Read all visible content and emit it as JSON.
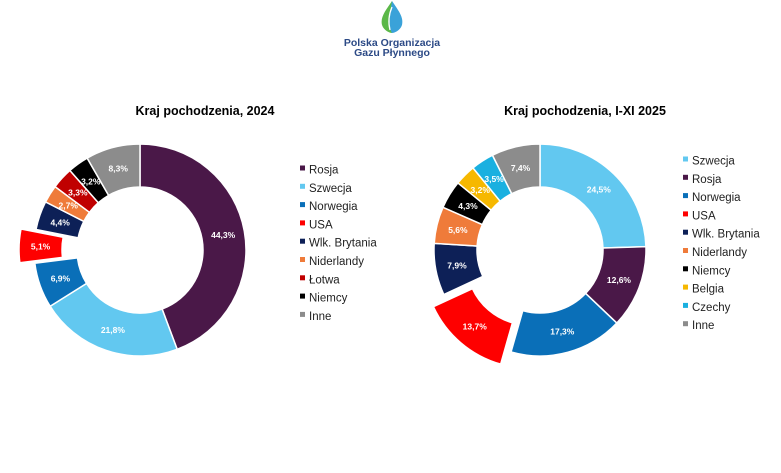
{
  "logo": {
    "line1": "Polska Organizacja",
    "line2": "Gazu Płynnego",
    "colors": {
      "text": "#2c4a86",
      "green": "#5bb848",
      "blue": "#3aa2d9"
    }
  },
  "chart_data": [
    {
      "type": "pie",
      "variant": "donut",
      "title": "Kraj pochodzenia, 2024",
      "categories": [
        "Rosja",
        "Szwecja",
        "Norwegia",
        "USA",
        "Wlk. Brytania",
        "Niderlandy",
        "Łotwa",
        "Niemcy",
        "Inne"
      ],
      "values": [
        44.3,
        21.8,
        6.9,
        5.1,
        4.4,
        2.7,
        3.3,
        3.2,
        8.3
      ],
      "value_labels": [
        "44,3%",
        "21,8%",
        "6,9%",
        "5,1%",
        "4,4%",
        "2,7%",
        "3,3%",
        "3,2%",
        "8,3%"
      ],
      "colors": [
        "#4a1848",
        "#62c8f0",
        "#0a6fb8",
        "#fe0000",
        "#0d2057",
        "#ef7b3a",
        "#c00000",
        "#000000",
        "#8c8c8c"
      ],
      "exploded": [
        "USA"
      ],
      "legend_position": "right"
    },
    {
      "type": "pie",
      "variant": "donut",
      "title": "Kraj pochodzenia, I-XI 2025",
      "categories": [
        "Szwecja",
        "Rosja",
        "Norwegia",
        "USA",
        "Wlk. Brytania",
        "Niderlandy",
        "Niemcy",
        "Belgia",
        "Czechy",
        "Inne"
      ],
      "values": [
        24.5,
        12.6,
        17.3,
        13.7,
        7.9,
        5.6,
        4.3,
        3.2,
        3.5,
        7.4
      ],
      "value_labels": [
        "24,5%",
        "12,6%",
        "17,3%",
        "13,7%",
        "7,9%",
        "5,6%",
        "4,3%",
        "3,2%",
        "3,5%",
        "7,4%"
      ],
      "colors": [
        "#62c8f0",
        "#4a1848",
        "#0a6fb8",
        "#fe0000",
        "#0d2057",
        "#ef7b3a",
        "#000000",
        "#f6b800",
        "#1ab0e0",
        "#8c8c8c"
      ],
      "exploded": [
        "USA"
      ],
      "legend_position": "right"
    }
  ]
}
